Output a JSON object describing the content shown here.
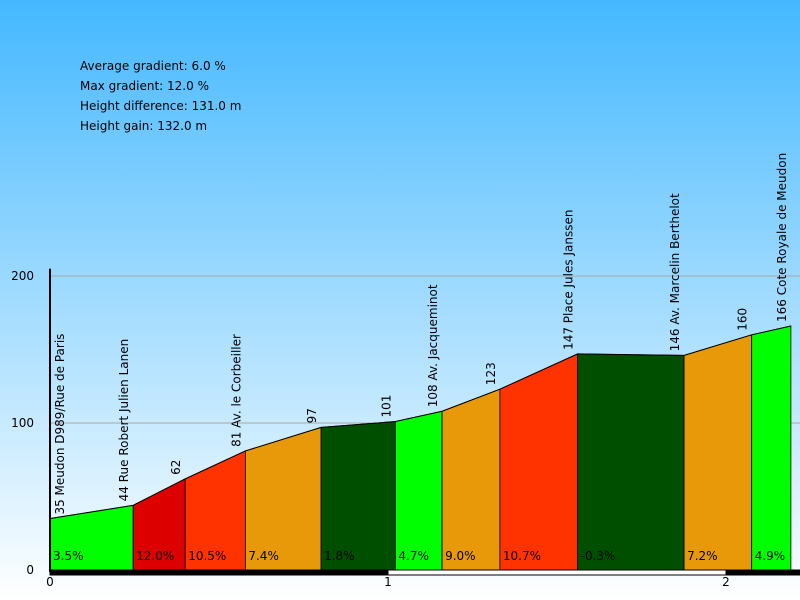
{
  "chart_data": {
    "type": "area",
    "title": "",
    "xlabel": "",
    "ylabel": "",
    "ylim": [
      0,
      200
    ],
    "xlim_km": [
      0,
      2.2
    ],
    "y_ticks": [
      "0",
      "100",
      "200"
    ],
    "x_ticks": [
      {
        "label": "0",
        "value": 0
      },
      {
        "label": "1",
        "value": 1
      },
      {
        "label": "2",
        "value": 2
      }
    ],
    "stats": [
      {
        "label": "Average gradient",
        "value": "6.0 %"
      },
      {
        "label": "Max gradient",
        "value": "12.0 %"
      },
      {
        "label": "Height difference",
        "value": "131.0 m"
      },
      {
        "label": "Height gain",
        "value": "132.0 m"
      }
    ],
    "points": [
      {
        "x": 0.0,
        "y": 35,
        "label": "35",
        "name": "Meudon D989/Rue de Paris"
      },
      {
        "x": 0.246,
        "y": 44,
        "label": "44",
        "name": "Rue Robert Julien Lanen"
      },
      {
        "x": 0.4,
        "y": 62,
        "label": "62",
        "name": ""
      },
      {
        "x": 0.578,
        "y": 81,
        "label": "81",
        "name": "Av. le Corbeiller"
      },
      {
        "x": 0.802,
        "y": 97,
        "label": "97",
        "name": ""
      },
      {
        "x": 1.022,
        "y": 101,
        "label": "101",
        "name": ""
      },
      {
        "x": 1.16,
        "y": 108,
        "label": "108",
        "name": "Av. Jacqueminot"
      },
      {
        "x": 1.331,
        "y": 123,
        "label": "123",
        "name": ""
      },
      {
        "x": 1.561,
        "y": 147,
        "label": "147",
        "name": "Place Jules Janssen"
      },
      {
        "x": 1.876,
        "y": 146,
        "label": "146",
        "name": "Av. Marcelin Berthelot"
      },
      {
        "x": 2.076,
        "y": 160,
        "label": "160",
        "name": ""
      },
      {
        "x": 2.192,
        "y": 166,
        "label": "166",
        "name": "Cote Royale de Meudon"
      }
    ],
    "segments": [
      {
        "gradient": "3.5%",
        "color": "#00ff00"
      },
      {
        "gradient": "12.0%",
        "color": "#dd0000"
      },
      {
        "gradient": "10.5%",
        "color": "#ff3300"
      },
      {
        "gradient": "7.4%",
        "color": "#e8990a"
      },
      {
        "gradient": "1.8%",
        "color": "#004f00"
      },
      {
        "gradient": "4.7%",
        "color": "#00ff00"
      },
      {
        "gradient": "9.0%",
        "color": "#e8990a"
      },
      {
        "gradient": "10.7%",
        "color": "#ff3300"
      },
      {
        "gradient": "-0.3%",
        "color": "#004f00"
      },
      {
        "gradient": "7.2%",
        "color": "#e8990a"
      },
      {
        "gradient": "4.9%",
        "color": "#00ff00"
      }
    ]
  }
}
